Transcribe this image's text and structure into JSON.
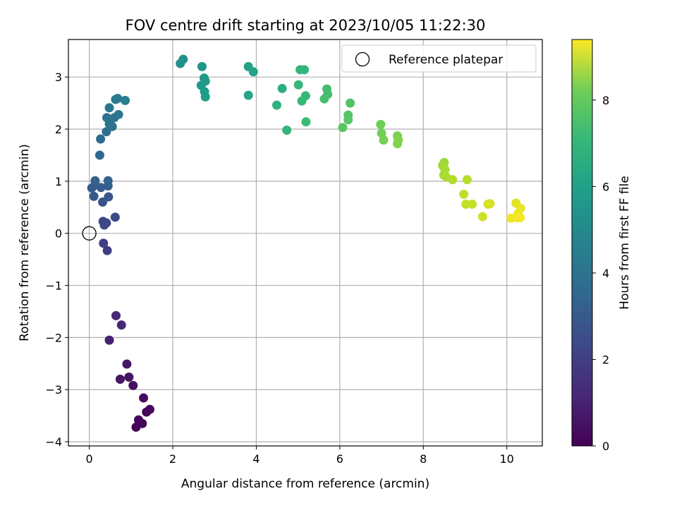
{
  "chart_data": {
    "type": "scatter",
    "title": "FOV centre drift starting at 2023/10/05 11:22:30",
    "xlabel": "Angular distance from reference (arcmin)",
    "ylabel": "Rotation from reference (arcmin)",
    "xlim": [
      -0.5,
      10.85
    ],
    "ylim": [
      -4.08,
      3.72
    ],
    "xticks": [
      0,
      2,
      4,
      6,
      8,
      10
    ],
    "yticks": [
      -4,
      -3,
      -2,
      -1,
      0,
      1,
      2,
      3
    ],
    "grid": true,
    "legend": {
      "placement": "top-right",
      "label": "Reference platepar"
    },
    "reference_point": {
      "x": 0,
      "y": 0
    },
    "colorbar": {
      "label": "Hours from first FF file",
      "colormap": "viridis",
      "range": [
        0,
        9.4
      ],
      "ticks": [
        0,
        2,
        4,
        6,
        8
      ]
    },
    "points": [
      {
        "x": 1.12,
        "y": -3.72,
        "t": 0.05
      },
      {
        "x": 1.27,
        "y": -3.65,
        "t": 0.1
      },
      {
        "x": 1.18,
        "y": -3.58,
        "t": 0.12
      },
      {
        "x": 1.37,
        "y": -3.43,
        "t": 0.18
      },
      {
        "x": 1.45,
        "y": -3.38,
        "t": 0.22
      },
      {
        "x": 1.3,
        "y": -3.16,
        "t": 0.3
      },
      {
        "x": 1.05,
        "y": -2.92,
        "t": 0.4
      },
      {
        "x": 0.95,
        "y": -2.76,
        "t": 0.48
      },
      {
        "x": 0.74,
        "y": -2.8,
        "t": 0.55
      },
      {
        "x": 0.9,
        "y": -2.51,
        "t": 0.6
      },
      {
        "x": 0.48,
        "y": -2.05,
        "t": 0.85
      },
      {
        "x": 0.77,
        "y": -1.76,
        "t": 1.0
      },
      {
        "x": 0.64,
        "y": -1.58,
        "t": 1.05
      },
      {
        "x": 0.43,
        "y": -0.33,
        "t": 1.7
      },
      {
        "x": 0.34,
        "y": -0.19,
        "t": 1.8
      },
      {
        "x": 0.36,
        "y": 0.16,
        "t": 1.95
      },
      {
        "x": 0.33,
        "y": 0.23,
        "t": 2.0
      },
      {
        "x": 0.41,
        "y": 0.2,
        "t": 2.05
      },
      {
        "x": 0.62,
        "y": 0.31,
        "t": 2.1
      },
      {
        "x": 0.32,
        "y": 0.6,
        "t": 2.4
      },
      {
        "x": 0.46,
        "y": 0.7,
        "t": 2.5
      },
      {
        "x": 0.11,
        "y": 0.71,
        "t": 2.6
      },
      {
        "x": 0.06,
        "y": 0.87,
        "t": 2.7
      },
      {
        "x": 0.28,
        "y": 0.88,
        "t": 2.75
      },
      {
        "x": 0.14,
        "y": 0.93,
        "t": 2.8
      },
      {
        "x": 0.45,
        "y": 0.91,
        "t": 2.85
      },
      {
        "x": 0.14,
        "y": 1.01,
        "t": 2.9
      },
      {
        "x": 0.45,
        "y": 1.01,
        "t": 2.95
      },
      {
        "x": 0.25,
        "y": 1.5,
        "t": 3.1
      },
      {
        "x": 0.27,
        "y": 1.81,
        "t": 3.25
      },
      {
        "x": 0.41,
        "y": 1.95,
        "t": 3.4
      },
      {
        "x": 0.55,
        "y": 2.05,
        "t": 3.5
      },
      {
        "x": 0.48,
        "y": 2.1,
        "t": 3.55
      },
      {
        "x": 0.42,
        "y": 2.22,
        "t": 3.6
      },
      {
        "x": 0.6,
        "y": 2.22,
        "t": 3.65
      },
      {
        "x": 0.7,
        "y": 2.28,
        "t": 3.7
      },
      {
        "x": 0.48,
        "y": 2.41,
        "t": 3.75
      },
      {
        "x": 0.63,
        "y": 2.57,
        "t": 3.85
      },
      {
        "x": 0.68,
        "y": 2.59,
        "t": 3.9
      },
      {
        "x": 0.86,
        "y": 2.55,
        "t": 4.0
      },
      {
        "x": 2.18,
        "y": 3.26,
        "t": 4.7
      },
      {
        "x": 2.25,
        "y": 3.34,
        "t": 4.75
      },
      {
        "x": 2.7,
        "y": 3.2,
        "t": 4.9
      },
      {
        "x": 2.75,
        "y": 2.98,
        "t": 5.0
      },
      {
        "x": 2.78,
        "y": 2.92,
        "t": 5.05
      },
      {
        "x": 2.68,
        "y": 2.84,
        "t": 5.1
      },
      {
        "x": 2.76,
        "y": 2.72,
        "t": 5.15
      },
      {
        "x": 2.78,
        "y": 2.62,
        "t": 5.2
      },
      {
        "x": 3.81,
        "y": 3.2,
        "t": 5.4
      },
      {
        "x": 3.93,
        "y": 3.1,
        "t": 5.45
      },
      {
        "x": 3.81,
        "y": 2.65,
        "t": 5.5
      },
      {
        "x": 4.62,
        "y": 2.78,
        "t": 5.9
      },
      {
        "x": 4.49,
        "y": 2.46,
        "t": 6.0
      },
      {
        "x": 4.73,
        "y": 1.98,
        "t": 6.1
      },
      {
        "x": 5.05,
        "y": 3.14,
        "t": 6.2
      },
      {
        "x": 5.15,
        "y": 3.14,
        "t": 6.22
      },
      {
        "x": 5.01,
        "y": 2.85,
        "t": 6.25
      },
      {
        "x": 5.18,
        "y": 2.64,
        "t": 6.3
      },
      {
        "x": 5.09,
        "y": 2.54,
        "t": 6.32
      },
      {
        "x": 5.19,
        "y": 2.14,
        "t": 6.4
      },
      {
        "x": 5.69,
        "y": 2.77,
        "t": 6.5
      },
      {
        "x": 5.71,
        "y": 2.67,
        "t": 6.55
      },
      {
        "x": 5.63,
        "y": 2.58,
        "t": 6.6
      },
      {
        "x": 6.25,
        "y": 2.5,
        "t": 6.8
      },
      {
        "x": 6.2,
        "y": 2.27,
        "t": 6.85
      },
      {
        "x": 6.2,
        "y": 2.18,
        "t": 6.9
      },
      {
        "x": 6.07,
        "y": 2.03,
        "t": 6.95
      },
      {
        "x": 6.98,
        "y": 2.09,
        "t": 7.3
      },
      {
        "x": 7.0,
        "y": 1.92,
        "t": 7.35
      },
      {
        "x": 7.05,
        "y": 1.79,
        "t": 7.4
      },
      {
        "x": 7.38,
        "y": 1.87,
        "t": 7.5
      },
      {
        "x": 7.4,
        "y": 1.79,
        "t": 7.55
      },
      {
        "x": 7.38,
        "y": 1.72,
        "t": 7.6
      },
      {
        "x": 8.5,
        "y": 1.36,
        "t": 8.0
      },
      {
        "x": 8.46,
        "y": 1.3,
        "t": 8.05
      },
      {
        "x": 8.52,
        "y": 1.22,
        "t": 8.1
      },
      {
        "x": 8.49,
        "y": 1.12,
        "t": 8.15
      },
      {
        "x": 8.55,
        "y": 1.08,
        "t": 8.2
      },
      {
        "x": 8.7,
        "y": 1.03,
        "t": 8.3
      },
      {
        "x": 9.05,
        "y": 1.03,
        "t": 8.4
      },
      {
        "x": 8.97,
        "y": 0.75,
        "t": 8.5
      },
      {
        "x": 9.02,
        "y": 0.56,
        "t": 8.55
      },
      {
        "x": 9.17,
        "y": 0.56,
        "t": 8.6
      },
      {
        "x": 9.42,
        "y": 0.32,
        "t": 8.7
      },
      {
        "x": 9.55,
        "y": 0.56,
        "t": 8.8
      },
      {
        "x": 9.6,
        "y": 0.57,
        "t": 8.85
      },
      {
        "x": 10.22,
        "y": 0.58,
        "t": 9.0
      },
      {
        "x": 10.33,
        "y": 0.48,
        "t": 9.1
      },
      {
        "x": 10.27,
        "y": 0.38,
        "t": 9.15
      },
      {
        "x": 10.1,
        "y": 0.29,
        "t": 9.2
      },
      {
        "x": 10.25,
        "y": 0.3,
        "t": 9.25
      },
      {
        "x": 10.32,
        "y": 0.3,
        "t": 9.3
      }
    ]
  }
}
